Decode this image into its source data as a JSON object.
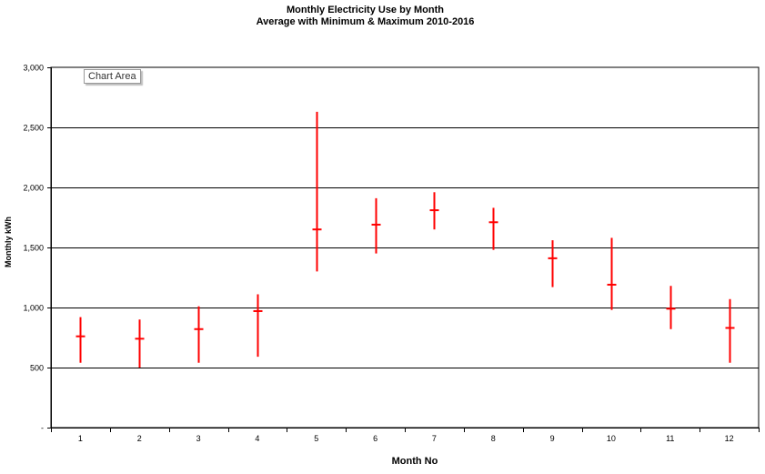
{
  "chart_data": {
    "type": "error-bar",
    "title": "Monthly Electricity Use by Month",
    "subtitle": "Average with Minimum & Maximum 2010-2016",
    "xlabel": "Month No",
    "ylabel": "Monthly kWh",
    "ylim": [
      0,
      3000
    ],
    "y_ticks": [
      0,
      500,
      1000,
      1500,
      2000,
      2500,
      3000
    ],
    "y_tick_labels": [
      "-",
      "500",
      "1,000",
      "1,500",
      "2,000",
      "2,500",
      "3,000"
    ],
    "categories": [
      "1",
      "2",
      "3",
      "4",
      "5",
      "6",
      "7",
      "8",
      "9",
      "10",
      "11",
      "12"
    ],
    "series": [
      {
        "average": [
          760,
          740,
          820,
          970,
          1650,
          1690,
          1810,
          1710,
          1410,
          1190,
          990,
          830
        ],
        "min": [
          540,
          500,
          540,
          590,
          1300,
          1450,
          1650,
          1480,
          1170,
          980,
          820,
          540
        ],
        "max": [
          920,
          900,
          1010,
          1110,
          2630,
          1910,
          1960,
          1830,
          1560,
          1580,
          1180,
          1070
        ]
      }
    ],
    "grid": "horizontal",
    "legend": "none",
    "color": "#ff0000"
  },
  "tooltip": {
    "label": "Chart Area"
  }
}
